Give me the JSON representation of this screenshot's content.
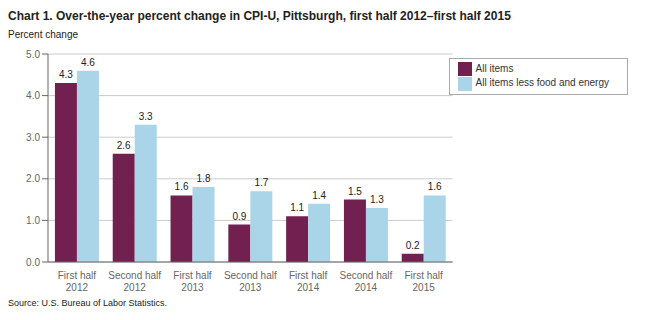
{
  "chart_data": {
    "type": "bar",
    "title": "Chart 1. Over-the-year percent change in CPI-U, Pittsburgh, first half 2012–first half 2015",
    "ylabel": "Percent change",
    "annotations": [
      "Source: U.S. Bureau of Labor Statistics."
    ],
    "categories": [
      "First half 2012",
      "Second half 2012",
      "First half 2013",
      "Second half 2013",
      "First half 2014",
      "Second half 2014",
      "First half 2015"
    ],
    "series": [
      {
        "name": "All items",
        "color": "#722050",
        "values": [
          4.3,
          2.6,
          1.6,
          0.9,
          1.1,
          1.5,
          0.2
        ]
      },
      {
        "name": "All items less food and energy",
        "color": "#aad4e8",
        "values": [
          4.6,
          3.3,
          1.8,
          1.7,
          1.4,
          1.3,
          1.6
        ]
      }
    ],
    "ylim": [
      0,
      5.0
    ],
    "yticks": [
      {
        "value": 0.0,
        "label": "0.0"
      },
      {
        "value": 1.0,
        "label": "1.0"
      },
      {
        "value": 2.0,
        "label": "2.0"
      },
      {
        "value": 3.0,
        "label": "3.0"
      },
      {
        "value": 4.0,
        "label": "4.0"
      },
      {
        "value": 5.0,
        "label": "5.0"
      }
    ],
    "grid": true,
    "legend": "upper right",
    "data_labels": true
  }
}
